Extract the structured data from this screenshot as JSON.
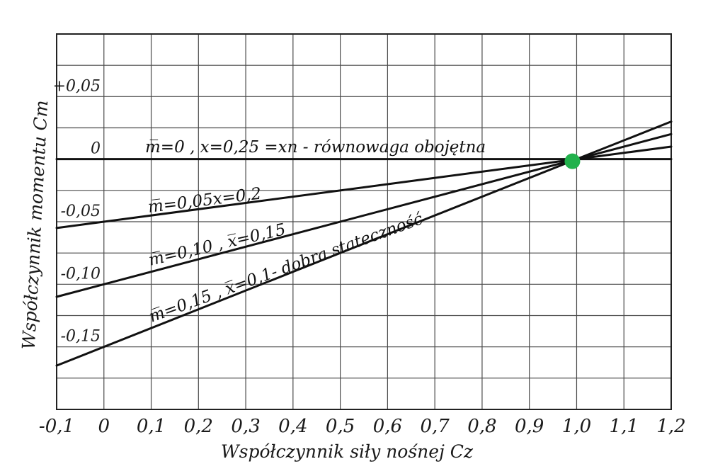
{
  "chart_data": {
    "type": "line",
    "title": "",
    "xlabel": "Współczynnik siły nośnej Cz",
    "ylabel": "Współczynnik momentu Cm",
    "xlim": [
      -0.1,
      1.2
    ],
    "ylim": [
      -0.2,
      0.1
    ],
    "x_ticks": [
      -0.1,
      0,
      0.1,
      0.2,
      0.3,
      0.4,
      0.5,
      0.6,
      0.7,
      0.8,
      0.9,
      1.0,
      1.1,
      1.2
    ],
    "x_tick_labels": [
      "-0,1",
      "0",
      "0,1",
      "0,2",
      "0,3",
      "0,4",
      "0,5",
      "0,6",
      "0,7",
      "0,8",
      "0,9",
      "1,0",
      "1,1",
      "1,2"
    ],
    "y_ticks": [
      0.05,
      0,
      -0.05,
      -0.1,
      -0.15
    ],
    "y_tick_labels": [
      "+0,05",
      "0",
      "-0,05",
      "-0,10",
      "-0,15"
    ],
    "grid": true,
    "series": [
      {
        "label": "m̅=0 , x=0,25 =xn - równowaga obojętna",
        "x": [
          -0.1,
          1.2
        ],
        "y": [
          0.0,
          0.0
        ]
      },
      {
        "label": "m̅=0,05x=0,2",
        "x": [
          -0.1,
          1.0,
          1.2
        ],
        "y": [
          -0.055,
          0.0,
          0.01
        ]
      },
      {
        "label": "m̅=0,10 , x̅=0,15",
        "x": [
          -0.1,
          1.0,
          1.2
        ],
        "y": [
          -0.11,
          0.0,
          0.02
        ]
      },
      {
        "label": "m̅=0,15 , x̅=0,1- dobra stateczność",
        "x": [
          -0.1,
          1.0,
          1.2
        ],
        "y": [
          -0.165,
          0.0,
          0.03
        ]
      }
    ],
    "highlight_point": {
      "x": 1.0,
      "y": 0.0,
      "color": "#22b14c"
    }
  }
}
